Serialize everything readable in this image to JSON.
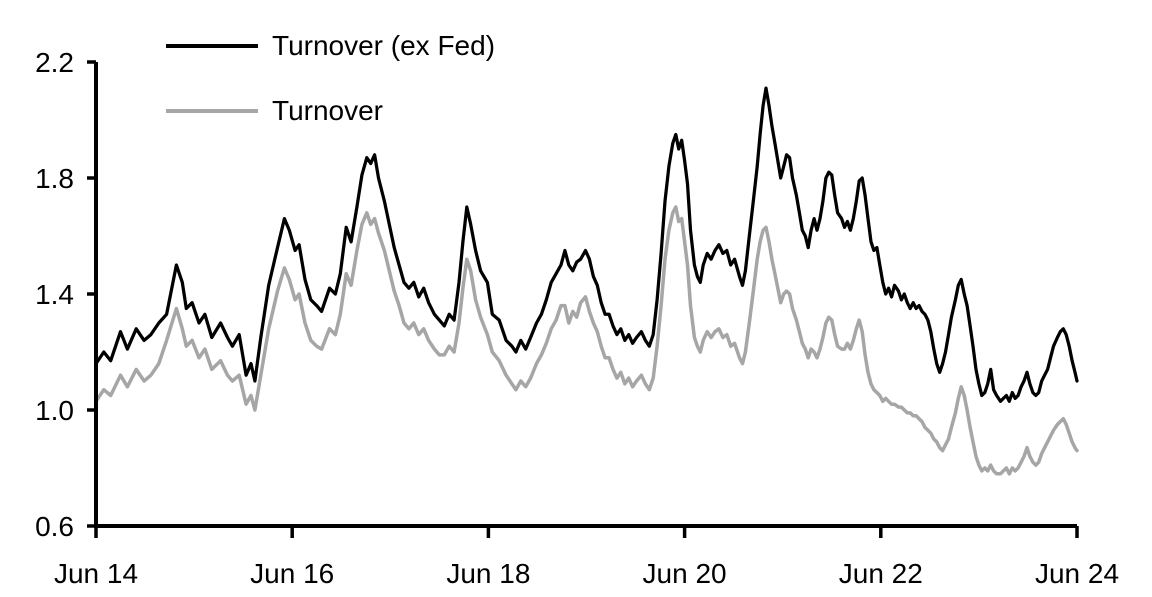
{
  "figure": {
    "background": "#ffffff",
    "axis_color": "#000000"
  },
  "chart_data": {
    "type": "line",
    "title": "",
    "xlabel": "",
    "ylabel": "",
    "grid": false,
    "x_axis": {
      "tick_labels": [
        "Jun 14",
        "Jun 16",
        "Jun 18",
        "Jun 20",
        "Jun 22",
        "Jun 24"
      ],
      "tick_values_years": [
        2014.45,
        2016.45,
        2018.45,
        2020.45,
        2022.45,
        2024.45
      ],
      "range_years": [
        2014.45,
        2024.45
      ]
    },
    "y_axis": {
      "tick_labels": [
        "2.2",
        "1.8",
        "1.4",
        "1.0",
        "0.6"
      ],
      "tick_values": [
        2.2,
        1.8,
        1.4,
        1.0,
        0.6
      ],
      "range": [
        0.6,
        2.2
      ]
    },
    "legend": {
      "position": "top-left",
      "entries": [
        {
          "label": "Turnover (ex Fed)",
          "color": "#000000"
        },
        {
          "label": "Turnover",
          "color": "#a6a6a6"
        }
      ]
    },
    "series": [
      {
        "name": "Turnover (ex Fed)",
        "color": "#000000",
        "stroke_width": 3.25,
        "points_column": 1
      },
      {
        "name": "Turnover",
        "color": "#a6a6a6",
        "stroke_width": 3.5,
        "points_column": 2
      }
    ],
    "columns": [
      "year_decimal",
      "turnover_ex_fed",
      "turnover"
    ],
    "points": [
      [
        2014.45,
        1.16,
        1.03
      ],
      [
        2014.53,
        1.2,
        1.07
      ],
      [
        2014.6,
        1.17,
        1.05
      ],
      [
        2014.7,
        1.27,
        1.12
      ],
      [
        2014.77,
        1.21,
        1.08
      ],
      [
        2014.86,
        1.28,
        1.14
      ],
      [
        2014.94,
        1.24,
        1.1
      ],
      [
        2015.01,
        1.26,
        1.12
      ],
      [
        2015.09,
        1.3,
        1.16
      ],
      [
        2015.17,
        1.33,
        1.24
      ],
      [
        2015.27,
        1.5,
        1.35
      ],
      [
        2015.33,
        1.44,
        1.28
      ],
      [
        2015.37,
        1.35,
        1.22
      ],
      [
        2015.43,
        1.37,
        1.24
      ],
      [
        2015.5,
        1.3,
        1.18
      ],
      [
        2015.56,
        1.33,
        1.21
      ],
      [
        2015.63,
        1.25,
        1.14
      ],
      [
        2015.72,
        1.3,
        1.17
      ],
      [
        2015.79,
        1.25,
        1.12
      ],
      [
        2015.84,
        1.22,
        1.1
      ],
      [
        2015.91,
        1.26,
        1.12
      ],
      [
        2015.98,
        1.12,
        1.02
      ],
      [
        2016.03,
        1.16,
        1.05
      ],
      [
        2016.07,
        1.1,
        1.0
      ],
      [
        2016.13,
        1.25,
        1.12
      ],
      [
        2016.21,
        1.43,
        1.28
      ],
      [
        2016.3,
        1.56,
        1.41
      ],
      [
        2016.37,
        1.66,
        1.49
      ],
      [
        2016.42,
        1.62,
        1.45
      ],
      [
        2016.48,
        1.55,
        1.38
      ],
      [
        2016.52,
        1.57,
        1.4
      ],
      [
        2016.58,
        1.45,
        1.3
      ],
      [
        2016.64,
        1.38,
        1.24
      ],
      [
        2016.7,
        1.36,
        1.22
      ],
      [
        2016.75,
        1.34,
        1.21
      ],
      [
        2016.83,
        1.42,
        1.28
      ],
      [
        2016.89,
        1.4,
        1.26
      ],
      [
        2016.94,
        1.47,
        1.33
      ],
      [
        2017.0,
        1.63,
        1.47
      ],
      [
        2017.05,
        1.58,
        1.43
      ],
      [
        2017.11,
        1.7,
        1.55
      ],
      [
        2017.16,
        1.81,
        1.64
      ],
      [
        2017.21,
        1.87,
        1.68
      ],
      [
        2017.25,
        1.85,
        1.64
      ],
      [
        2017.29,
        1.88,
        1.66
      ],
      [
        2017.33,
        1.8,
        1.61
      ],
      [
        2017.39,
        1.72,
        1.55
      ],
      [
        2017.44,
        1.64,
        1.48
      ],
      [
        2017.49,
        1.56,
        1.41
      ],
      [
        2017.54,
        1.5,
        1.36
      ],
      [
        2017.59,
        1.44,
        1.3
      ],
      [
        2017.64,
        1.42,
        1.28
      ],
      [
        2017.69,
        1.44,
        1.3
      ],
      [
        2017.74,
        1.39,
        1.26
      ],
      [
        2017.79,
        1.42,
        1.28
      ],
      [
        2017.84,
        1.37,
        1.24
      ],
      [
        2017.9,
        1.33,
        1.21
      ],
      [
        2017.95,
        1.31,
        1.19
      ],
      [
        2018.0,
        1.29,
        1.19
      ],
      [
        2018.05,
        1.33,
        1.22
      ],
      [
        2018.1,
        1.31,
        1.2
      ],
      [
        2018.15,
        1.44,
        1.3
      ],
      [
        2018.19,
        1.58,
        1.42
      ],
      [
        2018.23,
        1.7,
        1.52
      ],
      [
        2018.27,
        1.64,
        1.48
      ],
      [
        2018.32,
        1.55,
        1.38
      ],
      [
        2018.37,
        1.48,
        1.32
      ],
      [
        2018.44,
        1.44,
        1.26
      ],
      [
        2018.49,
        1.33,
        1.2
      ],
      [
        2018.56,
        1.31,
        1.17
      ],
      [
        2018.63,
        1.24,
        1.12
      ],
      [
        2018.69,
        1.22,
        1.09
      ],
      [
        2018.73,
        1.2,
        1.07
      ],
      [
        2018.78,
        1.24,
        1.1
      ],
      [
        2018.83,
        1.21,
        1.08
      ],
      [
        2018.88,
        1.25,
        1.11
      ],
      [
        2018.94,
        1.3,
        1.16
      ],
      [
        2018.99,
        1.33,
        1.19
      ],
      [
        2019.04,
        1.38,
        1.23
      ],
      [
        2019.09,
        1.44,
        1.28
      ],
      [
        2019.14,
        1.47,
        1.31
      ],
      [
        2019.19,
        1.5,
        1.36
      ],
      [
        2019.23,
        1.55,
        1.36
      ],
      [
        2019.27,
        1.5,
        1.3
      ],
      [
        2019.31,
        1.48,
        1.34
      ],
      [
        2019.35,
        1.51,
        1.32
      ],
      [
        2019.39,
        1.52,
        1.37
      ],
      [
        2019.44,
        1.55,
        1.39
      ],
      [
        2019.48,
        1.52,
        1.34
      ],
      [
        2019.52,
        1.46,
        1.3
      ],
      [
        2019.56,
        1.43,
        1.27
      ],
      [
        2019.6,
        1.37,
        1.22
      ],
      [
        2019.64,
        1.33,
        1.18
      ],
      [
        2019.68,
        1.33,
        1.18
      ],
      [
        2019.72,
        1.29,
        1.14
      ],
      [
        2019.76,
        1.26,
        1.11
      ],
      [
        2019.8,
        1.28,
        1.13
      ],
      [
        2019.84,
        1.24,
        1.09
      ],
      [
        2019.88,
        1.26,
        1.11
      ],
      [
        2019.92,
        1.23,
        1.08
      ],
      [
        2019.96,
        1.25,
        1.1
      ],
      [
        2020.01,
        1.27,
        1.12
      ],
      [
        2020.05,
        1.24,
        1.09
      ],
      [
        2020.09,
        1.22,
        1.07
      ],
      [
        2020.13,
        1.26,
        1.11
      ],
      [
        2020.17,
        1.38,
        1.22
      ],
      [
        2020.21,
        1.54,
        1.36
      ],
      [
        2020.25,
        1.72,
        1.52
      ],
      [
        2020.29,
        1.84,
        1.62
      ],
      [
        2020.33,
        1.92,
        1.68
      ],
      [
        2020.36,
        1.95,
        1.7
      ],
      [
        2020.39,
        1.9,
        1.65
      ],
      [
        2020.42,
        1.93,
        1.66
      ],
      [
        2020.45,
        1.86,
        1.58
      ],
      [
        2020.48,
        1.78,
        1.5
      ],
      [
        2020.51,
        1.62,
        1.36
      ],
      [
        2020.55,
        1.5,
        1.25
      ],
      [
        2020.58,
        1.46,
        1.22
      ],
      [
        2020.61,
        1.44,
        1.2
      ],
      [
        2020.64,
        1.5,
        1.24
      ],
      [
        2020.68,
        1.54,
        1.27
      ],
      [
        2020.72,
        1.52,
        1.25
      ],
      [
        2020.76,
        1.55,
        1.27
      ],
      [
        2020.8,
        1.57,
        1.28
      ],
      [
        2020.84,
        1.54,
        1.25
      ],
      [
        2020.88,
        1.55,
        1.26
      ],
      [
        2020.92,
        1.5,
        1.22
      ],
      [
        2020.96,
        1.52,
        1.23
      ],
      [
        2021.01,
        1.46,
        1.18
      ],
      [
        2021.04,
        1.43,
        1.16
      ],
      [
        2021.07,
        1.48,
        1.2
      ],
      [
        2021.11,
        1.6,
        1.3
      ],
      [
        2021.15,
        1.72,
        1.41
      ],
      [
        2021.19,
        1.84,
        1.52
      ],
      [
        2021.22,
        1.95,
        1.58
      ],
      [
        2021.25,
        2.05,
        1.62
      ],
      [
        2021.28,
        2.11,
        1.63
      ],
      [
        2021.31,
        2.05,
        1.58
      ],
      [
        2021.34,
        1.98,
        1.52
      ],
      [
        2021.37,
        1.92,
        1.47
      ],
      [
        2021.4,
        1.86,
        1.42
      ],
      [
        2021.43,
        1.8,
        1.37
      ],
      [
        2021.46,
        1.84,
        1.4
      ],
      [
        2021.49,
        1.88,
        1.41
      ],
      [
        2021.52,
        1.87,
        1.4
      ],
      [
        2021.55,
        1.8,
        1.35
      ],
      [
        2021.59,
        1.74,
        1.31
      ],
      [
        2021.62,
        1.68,
        1.27
      ],
      [
        2021.65,
        1.62,
        1.23
      ],
      [
        2021.68,
        1.6,
        1.21
      ],
      [
        2021.71,
        1.56,
        1.18
      ],
      [
        2021.74,
        1.62,
        1.21
      ],
      [
        2021.77,
        1.66,
        1.2
      ],
      [
        2021.8,
        1.62,
        1.18
      ],
      [
        2021.83,
        1.66,
        1.21
      ],
      [
        2021.86,
        1.72,
        1.25
      ],
      [
        2021.89,
        1.8,
        1.3
      ],
      [
        2021.92,
        1.82,
        1.32
      ],
      [
        2021.95,
        1.81,
        1.31
      ],
      [
        2021.98,
        1.74,
        1.26
      ],
      [
        2022.01,
        1.68,
        1.22
      ],
      [
        2022.05,
        1.66,
        1.21
      ],
      [
        2022.08,
        1.63,
        1.21
      ],
      [
        2022.11,
        1.65,
        1.23
      ],
      [
        2022.14,
        1.62,
        1.21
      ],
      [
        2022.17,
        1.66,
        1.24
      ],
      [
        2022.2,
        1.72,
        1.28
      ],
      [
        2022.23,
        1.79,
        1.31
      ],
      [
        2022.26,
        1.8,
        1.27
      ],
      [
        2022.29,
        1.74,
        1.19
      ],
      [
        2022.32,
        1.66,
        1.13
      ],
      [
        2022.35,
        1.58,
        1.09
      ],
      [
        2022.38,
        1.55,
        1.07
      ],
      [
        2022.41,
        1.56,
        1.06
      ],
      [
        2022.44,
        1.5,
        1.05
      ],
      [
        2022.47,
        1.44,
        1.03
      ],
      [
        2022.5,
        1.4,
        1.04
      ],
      [
        2022.53,
        1.42,
        1.03
      ],
      [
        2022.56,
        1.39,
        1.02
      ],
      [
        2022.59,
        1.43,
        1.02
      ],
      [
        2022.63,
        1.41,
        1.01
      ],
      [
        2022.66,
        1.38,
        1.01
      ],
      [
        2022.69,
        1.4,
        1.0
      ],
      [
        2022.72,
        1.37,
        0.99
      ],
      [
        2022.75,
        1.35,
        0.99
      ],
      [
        2022.78,
        1.37,
        0.98
      ],
      [
        2022.81,
        1.35,
        0.98
      ],
      [
        2022.84,
        1.36,
        0.97
      ],
      [
        2022.87,
        1.34,
        0.96
      ],
      [
        2022.9,
        1.33,
        0.94
      ],
      [
        2022.93,
        1.31,
        0.93
      ],
      [
        2022.96,
        1.27,
        0.92
      ],
      [
        2022.99,
        1.21,
        0.9
      ],
      [
        2023.02,
        1.16,
        0.89
      ],
      [
        2023.05,
        1.13,
        0.87
      ],
      [
        2023.08,
        1.16,
        0.86
      ],
      [
        2023.11,
        1.2,
        0.88
      ],
      [
        2023.14,
        1.26,
        0.9
      ],
      [
        2023.17,
        1.32,
        0.94
      ],
      [
        2023.21,
        1.38,
        0.99
      ],
      [
        2023.24,
        1.43,
        1.04
      ],
      [
        2023.27,
        1.45,
        1.08
      ],
      [
        2023.3,
        1.4,
        1.05
      ],
      [
        2023.33,
        1.36,
        1.0
      ],
      [
        2023.36,
        1.29,
        0.94
      ],
      [
        2023.39,
        1.22,
        0.89
      ],
      [
        2023.42,
        1.14,
        0.84
      ],
      [
        2023.45,
        1.09,
        0.81
      ],
      [
        2023.48,
        1.05,
        0.79
      ],
      [
        2023.51,
        1.06,
        0.8
      ],
      [
        2023.54,
        1.09,
        0.79
      ],
      [
        2023.57,
        1.14,
        0.81
      ],
      [
        2023.6,
        1.07,
        0.79
      ],
      [
        2023.63,
        1.05,
        0.78
      ],
      [
        2023.67,
        1.03,
        0.78
      ],
      [
        2023.7,
        1.04,
        0.79
      ],
      [
        2023.73,
        1.05,
        0.8
      ],
      [
        2023.76,
        1.03,
        0.78
      ],
      [
        2023.79,
        1.06,
        0.8
      ],
      [
        2023.82,
        1.04,
        0.79
      ],
      [
        2023.85,
        1.05,
        0.8
      ],
      [
        2023.88,
        1.08,
        0.82
      ],
      [
        2023.91,
        1.1,
        0.84
      ],
      [
        2023.94,
        1.13,
        0.87
      ],
      [
        2023.97,
        1.09,
        0.84
      ],
      [
        2024.0,
        1.06,
        0.82
      ],
      [
        2024.03,
        1.05,
        0.81
      ],
      [
        2024.06,
        1.06,
        0.82
      ],
      [
        2024.09,
        1.1,
        0.85
      ],
      [
        2024.12,
        1.12,
        0.87
      ],
      [
        2024.15,
        1.14,
        0.89
      ],
      [
        2024.18,
        1.18,
        0.91
      ],
      [
        2024.21,
        1.22,
        0.93
      ],
      [
        2024.25,
        1.25,
        0.95
      ],
      [
        2024.28,
        1.27,
        0.96
      ],
      [
        2024.31,
        1.28,
        0.97
      ],
      [
        2024.34,
        1.26,
        0.95
      ],
      [
        2024.37,
        1.22,
        0.92
      ],
      [
        2024.4,
        1.17,
        0.89
      ],
      [
        2024.43,
        1.13,
        0.87
      ],
      [
        2024.45,
        1.1,
        0.86
      ]
    ]
  }
}
